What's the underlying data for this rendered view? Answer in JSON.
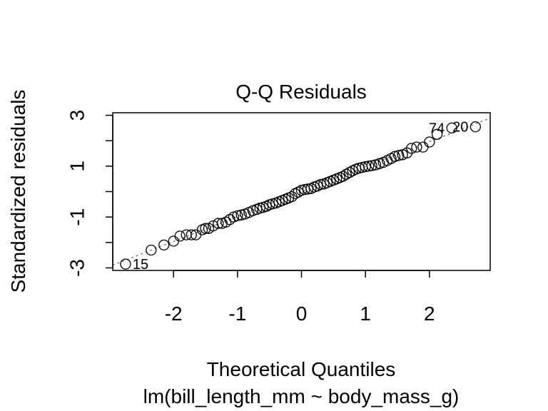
{
  "chart_data": {
    "type": "scatter",
    "title": "Q-Q Residuals",
    "xlabel": "Theoretical Quantiles",
    "subtitle": "lm(bill_length_mm ~ body_mass_g)",
    "ylabel": "Standardized residuals",
    "xlim": [
      -2.95,
      2.95
    ],
    "ylim": [
      -3.1,
      3.1
    ],
    "x_ticks": [
      -2,
      -1,
      0,
      1,
      2
    ],
    "x_tick_labels": [
      "-2",
      "-1",
      "0",
      "1",
      "2"
    ],
    "y_ticks": [
      -3,
      -2,
      -1,
      0,
      1,
      2,
      3
    ],
    "y_tick_labels": [
      "-3",
      "",
      "-1",
      "",
      "1",
      "",
      "3"
    ],
    "reference_line": {
      "slope": 0.98,
      "intercept": 0.0,
      "style": "dotted",
      "color": "#808080"
    },
    "grid": false,
    "legend": "none",
    "points": [
      {
        "x": -2.75,
        "y": -2.85,
        "label": "15"
      },
      {
        "x": -2.35,
        "y": -2.3
      },
      {
        "x": -2.15,
        "y": -2.1
      },
      {
        "x": -2.0,
        "y": -1.95
      },
      {
        "x": -1.9,
        "y": -1.75
      },
      {
        "x": -1.8,
        "y": -1.7
      },
      {
        "x": -1.72,
        "y": -1.7
      },
      {
        "x": -1.65,
        "y": -1.7
      },
      {
        "x": -1.55,
        "y": -1.5
      },
      {
        "x": -1.5,
        "y": -1.45
      },
      {
        "x": -1.45,
        "y": -1.45
      },
      {
        "x": -1.38,
        "y": -1.35
      },
      {
        "x": -1.3,
        "y": -1.25
      },
      {
        "x": -1.24,
        "y": -1.25
      },
      {
        "x": -1.18,
        "y": -1.2
      },
      {
        "x": -1.12,
        "y": -1.1
      },
      {
        "x": -1.06,
        "y": -1.0
      },
      {
        "x": -1.0,
        "y": -0.95
      },
      {
        "x": -0.94,
        "y": -0.92
      },
      {
        "x": -0.88,
        "y": -0.88
      },
      {
        "x": -0.82,
        "y": -0.82
      },
      {
        "x": -0.76,
        "y": -0.75
      },
      {
        "x": -0.7,
        "y": -0.7
      },
      {
        "x": -0.65,
        "y": -0.65
      },
      {
        "x": -0.6,
        "y": -0.62
      },
      {
        "x": -0.55,
        "y": -0.58
      },
      {
        "x": -0.5,
        "y": -0.52
      },
      {
        "x": -0.45,
        "y": -0.48
      },
      {
        "x": -0.4,
        "y": -0.45
      },
      {
        "x": -0.35,
        "y": -0.4
      },
      {
        "x": -0.3,
        "y": -0.35
      },
      {
        "x": -0.25,
        "y": -0.3
      },
      {
        "x": -0.2,
        "y": -0.25
      },
      {
        "x": -0.15,
        "y": -0.2
      },
      {
        "x": -0.1,
        "y": -0.08
      },
      {
        "x": -0.05,
        "y": -0.02
      },
      {
        "x": 0.0,
        "y": 0.05
      },
      {
        "x": 0.05,
        "y": 0.08
      },
      {
        "x": 0.1,
        "y": 0.1
      },
      {
        "x": 0.15,
        "y": 0.12
      },
      {
        "x": 0.2,
        "y": 0.18
      },
      {
        "x": 0.25,
        "y": 0.22
      },
      {
        "x": 0.3,
        "y": 0.28
      },
      {
        "x": 0.35,
        "y": 0.3
      },
      {
        "x": 0.4,
        "y": 0.35
      },
      {
        "x": 0.45,
        "y": 0.4
      },
      {
        "x": 0.5,
        "y": 0.45
      },
      {
        "x": 0.55,
        "y": 0.5
      },
      {
        "x": 0.6,
        "y": 0.55
      },
      {
        "x": 0.65,
        "y": 0.6
      },
      {
        "x": 0.7,
        "y": 0.68
      },
      {
        "x": 0.75,
        "y": 0.75
      },
      {
        "x": 0.8,
        "y": 0.82
      },
      {
        "x": 0.85,
        "y": 0.88
      },
      {
        "x": 0.9,
        "y": 0.92
      },
      {
        "x": 0.95,
        "y": 0.95
      },
      {
        "x": 1.0,
        "y": 0.98
      },
      {
        "x": 1.05,
        "y": 1.0
      },
      {
        "x": 1.1,
        "y": 1.02
      },
      {
        "x": 1.16,
        "y": 1.05
      },
      {
        "x": 1.22,
        "y": 1.1
      },
      {
        "x": 1.28,
        "y": 1.15
      },
      {
        "x": 1.34,
        "y": 1.22
      },
      {
        "x": 1.4,
        "y": 1.3
      },
      {
        "x": 1.46,
        "y": 1.38
      },
      {
        "x": 1.52,
        "y": 1.42
      },
      {
        "x": 1.58,
        "y": 1.45
      },
      {
        "x": 1.65,
        "y": 1.52
      },
      {
        "x": 1.72,
        "y": 1.7
      },
      {
        "x": 1.8,
        "y": 1.75
      },
      {
        "x": 1.9,
        "y": 1.75
      },
      {
        "x": 2.0,
        "y": 1.95
      },
      {
        "x": 2.12,
        "y": 2.25
      },
      {
        "x": 2.35,
        "y": 2.5,
        "label": "74"
      },
      {
        "x": 2.72,
        "y": 2.55,
        "label": "20"
      }
    ]
  }
}
